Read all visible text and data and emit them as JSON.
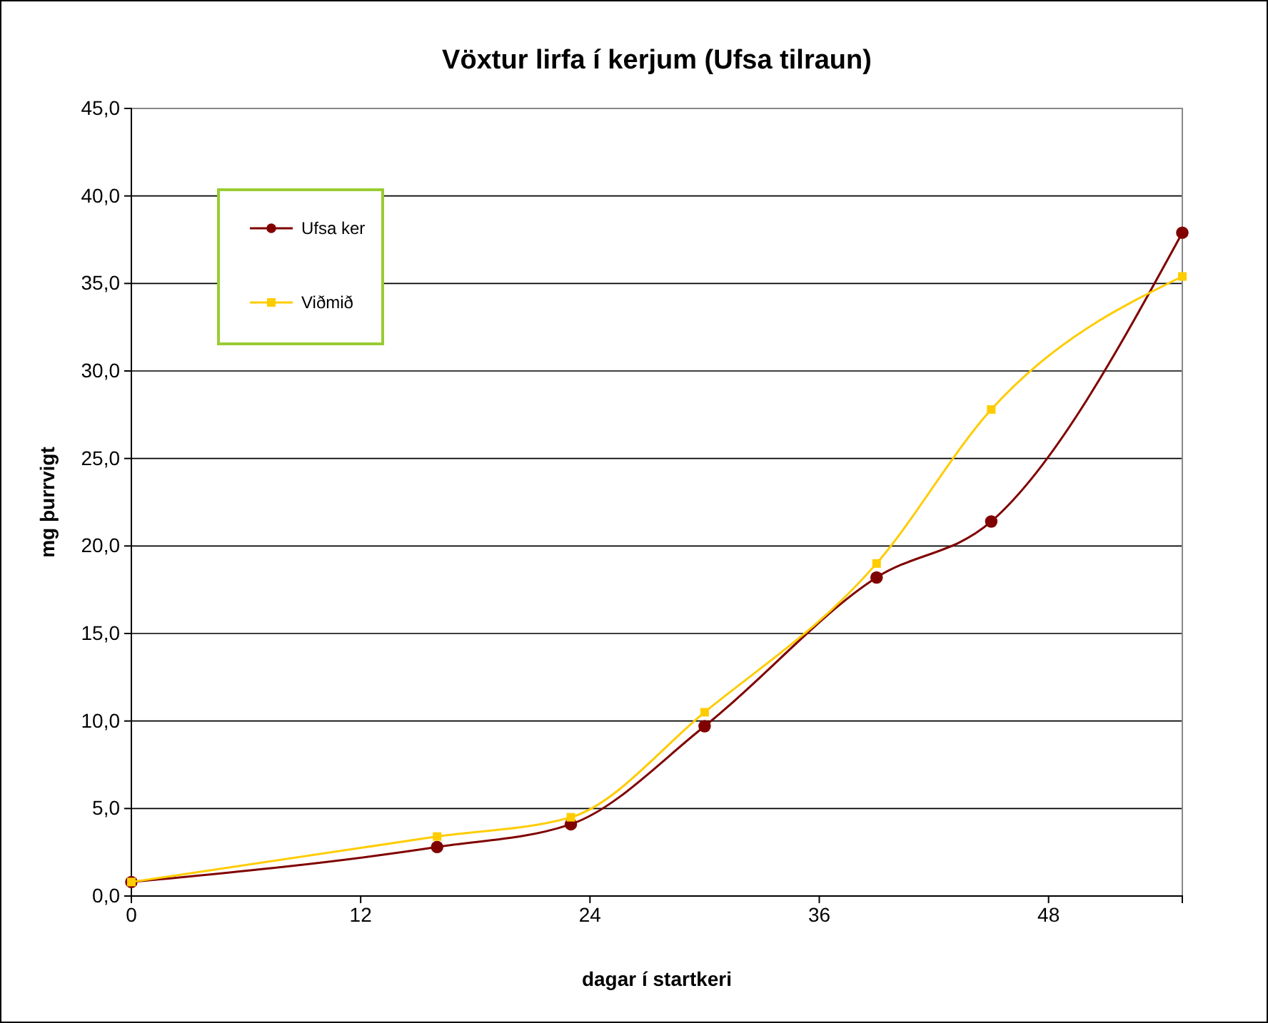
{
  "chart_data": {
    "type": "line",
    "title": "Vöxtur lirfa í kerjum (Ufsa tilraun)",
    "xlabel": "dagar í startkeri",
    "ylabel": "mg þurrvigt",
    "x": [
      0,
      16,
      23,
      30,
      39,
      45,
      55
    ],
    "series": [
      {
        "name": "Ufsa ker",
        "color": "#800000",
        "marker": "circle",
        "values": [
          0.8,
          2.8,
          4.1,
          9.7,
          18.2,
          21.4,
          37.9
        ]
      },
      {
        "name": "Viðmið",
        "color": "#ffcc00",
        "marker": "square",
        "values": [
          0.8,
          3.4,
          4.5,
          10.5,
          19.0,
          27.8,
          35.4
        ]
      }
    ],
    "xlim": [
      0,
      55
    ],
    "xticks": [
      0,
      12,
      24,
      36,
      48
    ],
    "ylim": [
      0,
      45
    ],
    "yticks": [
      {
        "value": 0,
        "label": "0,0"
      },
      {
        "value": 5,
        "label": "5,0"
      },
      {
        "value": 10,
        "label": "10,0"
      },
      {
        "value": 15,
        "label": "15,0"
      },
      {
        "value": 20,
        "label": "20,0"
      },
      {
        "value": 25,
        "label": "25,0"
      },
      {
        "value": 30,
        "label": "30,0"
      },
      {
        "value": 35,
        "label": "35,0"
      },
      {
        "value": 40,
        "label": "40,0"
      },
      {
        "value": 45,
        "label": "45,0"
      }
    ],
    "grid": "y",
    "legend": "top left"
  }
}
